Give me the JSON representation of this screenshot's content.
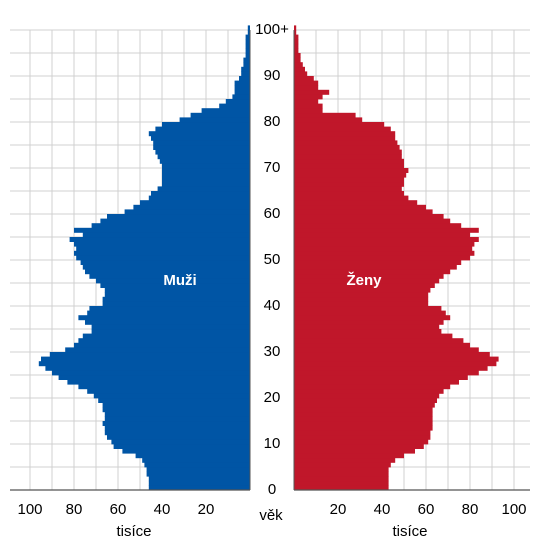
{
  "chart_data": {
    "type": "bar",
    "orientation": "horizontal",
    "layout": "population-pyramid",
    "x_unit_label": "tisíce",
    "y_axis_label": "věk",
    "y_tick_labels": [
      "0",
      "10",
      "20",
      "30",
      "40",
      "50",
      "60",
      "70",
      "80",
      "90",
      "100+"
    ],
    "x_tick_labels_left": [
      "100",
      "80",
      "60",
      "40",
      "20"
    ],
    "x_tick_labels_right": [
      "20",
      "40",
      "60",
      "80",
      "100"
    ],
    "xlim": [
      0,
      100
    ],
    "ylim": [
      0,
      100
    ],
    "grid": true,
    "ages": [
      0,
      1,
      2,
      3,
      4,
      5,
      6,
      7,
      8,
      9,
      10,
      11,
      12,
      13,
      14,
      15,
      16,
      17,
      18,
      19,
      20,
      21,
      22,
      23,
      24,
      25,
      26,
      27,
      28,
      29,
      30,
      31,
      32,
      33,
      34,
      35,
      36,
      37,
      38,
      39,
      40,
      41,
      42,
      43,
      44,
      45,
      46,
      47,
      48,
      49,
      50,
      51,
      52,
      53,
      54,
      55,
      56,
      57,
      58,
      59,
      60,
      61,
      62,
      63,
      64,
      65,
      66,
      67,
      68,
      69,
      70,
      71,
      72,
      73,
      74,
      75,
      76,
      77,
      78,
      79,
      80,
      81,
      82,
      83,
      84,
      85,
      86,
      87,
      88,
      89,
      90,
      91,
      92,
      93,
      94,
      95,
      96,
      97,
      98,
      99,
      100
    ],
    "series": [
      {
        "name": "Muži",
        "color": "#0055a5",
        "side": "left",
        "values": [
          46,
          46,
          46,
          47,
          47,
          48,
          49,
          52,
          58,
          62,
          63,
          65,
          66,
          66,
          67,
          66,
          66,
          67,
          67,
          69,
          71,
          74,
          78,
          83,
          87,
          90,
          93,
          96,
          95,
          91,
          84,
          80,
          78,
          76,
          72,
          72,
          75,
          78,
          74,
          73,
          67,
          67,
          66,
          66,
          68,
          70,
          73,
          75,
          76,
          77,
          79,
          80,
          79,
          80,
          82,
          76,
          80,
          72,
          68,
          65,
          57,
          53,
          50,
          46,
          45,
          42,
          40,
          40,
          40,
          40,
          40,
          41,
          42,
          43,
          44,
          44,
          45,
          46,
          43,
          40,
          32,
          27,
          22,
          14,
          11,
          8,
          7,
          7,
          7,
          5,
          4,
          4,
          3,
          3,
          2,
          2,
          2,
          2,
          2,
          1,
          1
        ]
      },
      {
        "name": "Ženy",
        "color": "#c0172a",
        "side": "right",
        "values": [
          43,
          43,
          43,
          43,
          43,
          44,
          46,
          50,
          55,
          59,
          61,
          62,
          62,
          63,
          63,
          63,
          63,
          63,
          64,
          65,
          66,
          68,
          71,
          75,
          79,
          84,
          88,
          92,
          93,
          89,
          84,
          80,
          77,
          72,
          67,
          66,
          68,
          71,
          69,
          67,
          61,
          61,
          61,
          62,
          64,
          66,
          68,
          71,
          74,
          76,
          80,
          82,
          81,
          82,
          84,
          80,
          84,
          76,
          71,
          68,
          63,
          60,
          56,
          52,
          50,
          49,
          50,
          50,
          51,
          52,
          50,
          50,
          49,
          49,
          48,
          47,
          46,
          46,
          44,
          41,
          31,
          28,
          13,
          13,
          11,
          13,
          16,
          11,
          11,
          9,
          6,
          5,
          4,
          3,
          3,
          2,
          2,
          2,
          2,
          1,
          1
        ]
      }
    ]
  }
}
